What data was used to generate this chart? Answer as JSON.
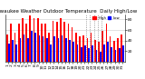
{
  "title": "Milwaukee Weather Outdoor Temperature  Daily High/Low",
  "title_fontsize": 4.0,
  "background_color": "#ffffff",
  "bar_width": 0.4,
  "ylim": [
    0,
    90
  ],
  "yticks": [
    20,
    40,
    60,
    80
  ],
  "days": [
    1,
    2,
    3,
    4,
    5,
    6,
    7,
    8,
    9,
    10,
    11,
    12,
    13,
    14,
    15,
    16,
    17,
    18,
    19,
    20,
    21,
    22,
    23,
    24,
    25,
    26,
    27,
    28,
    29,
    30,
    31
  ],
  "highs": [
    52,
    72,
    55,
    72,
    83,
    72,
    87,
    82,
    82,
    72,
    72,
    55,
    78,
    75,
    82,
    75,
    72,
    65,
    55,
    48,
    50,
    45,
    55,
    42,
    38,
    58,
    72,
    48,
    40,
    45,
    52
  ],
  "lows": [
    35,
    42,
    33,
    45,
    52,
    45,
    58,
    55,
    50,
    48,
    45,
    32,
    48,
    45,
    50,
    45,
    42,
    38,
    32,
    28,
    30,
    25,
    30,
    22,
    18,
    32,
    38,
    27,
    22,
    25,
    30
  ],
  "high_color": "#ff0000",
  "low_color": "#0000ff",
  "grid_color": "#cccccc",
  "dot_lines": [
    21,
    22,
    23,
    24,
    25
  ],
  "legend_high": "High",
  "legend_low": "Low",
  "tick_fontsize": 3.2,
  "ylabel_right": true
}
